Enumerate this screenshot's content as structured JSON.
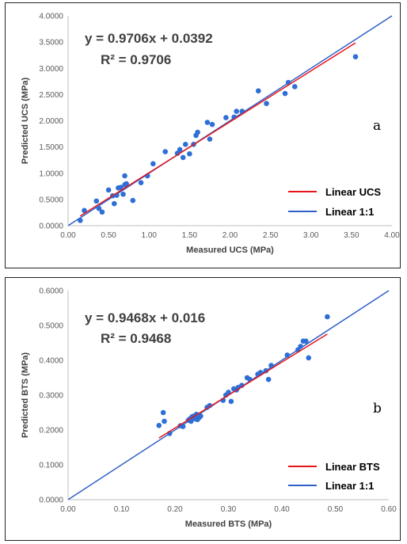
{
  "chart_data": [
    {
      "type": "scatter",
      "panel_label": "a",
      "xlabel": "Measured UCS (MPa)",
      "ylabel": "Predicted UCS (MPa)",
      "xlim": [
        0,
        4
      ],
      "ylim": [
        0,
        4
      ],
      "x_ticks": [
        "0.00",
        "0.50",
        "1.00",
        "1.50",
        "2.00",
        "2.50",
        "3.00",
        "3.50",
        "4.00"
      ],
      "y_ticks": [
        "0.0000",
        "0.5000",
        "1.0000",
        "1.5000",
        "2.0000",
        "2.5000",
        "3.0000",
        "3.5000",
        "4.0000"
      ],
      "equation": "y = 0.9706x + 0.0392",
      "r_squared": "R² = 0.9706",
      "trendline": {
        "slope": 0.9706,
        "intercept": 0.0392,
        "x_range": [
          0.15,
          3.55
        ]
      },
      "identity_line": {
        "x_range": [
          0,
          4
        ]
      },
      "legend": [
        "Linear UCS",
        "Linear 1:1"
      ],
      "legend_position": "bottom-right",
      "colors": {
        "points": "#2e6fd6",
        "trend": "#e8141b",
        "identity": "#2f5fc7"
      },
      "points": [
        [
          0.15,
          0.1
        ],
        [
          0.2,
          0.29
        ],
        [
          0.35,
          0.47
        ],
        [
          0.38,
          0.33
        ],
        [
          0.42,
          0.26
        ],
        [
          0.5,
          0.68
        ],
        [
          0.55,
          0.57
        ],
        [
          0.57,
          0.42
        ],
        [
          0.6,
          0.58
        ],
        [
          0.62,
          0.72
        ],
        [
          0.65,
          0.73
        ],
        [
          0.68,
          0.6
        ],
        [
          0.7,
          0.95
        ],
        [
          0.7,
          0.78
        ],
        [
          0.72,
          0.8
        ],
        [
          0.8,
          0.48
        ],
        [
          0.9,
          0.82
        ],
        [
          0.98,
          0.95
        ],
        [
          1.05,
          1.18
        ],
        [
          1.2,
          1.41
        ],
        [
          1.35,
          1.38
        ],
        [
          1.38,
          1.45
        ],
        [
          1.42,
          1.3
        ],
        [
          1.45,
          1.55
        ],
        [
          1.5,
          1.37
        ],
        [
          1.55,
          1.55
        ],
        [
          1.58,
          1.72
        ],
        [
          1.6,
          1.78
        ],
        [
          1.72,
          1.97
        ],
        [
          1.75,
          1.65
        ],
        [
          1.78,
          1.93
        ],
        [
          1.95,
          2.06
        ],
        [
          2.05,
          2.07
        ],
        [
          2.08,
          2.18
        ],
        [
          2.15,
          2.18
        ],
        [
          2.35,
          2.57
        ],
        [
          2.45,
          2.33
        ],
        [
          2.68,
          2.52
        ],
        [
          2.72,
          2.73
        ],
        [
          2.8,
          2.65
        ],
        [
          3.55,
          3.22
        ]
      ]
    },
    {
      "type": "scatter",
      "panel_label": "b",
      "xlabel": "Measured BTS (MPa)",
      "ylabel": "Predicted BTS (MPa)",
      "xlim": [
        0,
        0.6
      ],
      "ylim": [
        0,
        0.6
      ],
      "x_ticks": [
        "0.00",
        "0.10",
        "0.20",
        "0.30",
        "0.40",
        "0.50",
        "0.60"
      ],
      "y_ticks": [
        "0.0000",
        "0.1000",
        "0.2000",
        "0.3000",
        "0.4000",
        "0.5000",
        "0.6000"
      ],
      "equation": "y = 0.9468x + 0.016",
      "r_squared": "R² = 0.9468",
      "trendline": {
        "slope": 0.9468,
        "intercept": 0.016,
        "x_range": [
          0.17,
          0.485
        ]
      },
      "identity_line": {
        "x_range": [
          0,
          0.6
        ]
      },
      "legend": [
        "Linear BTS",
        "Linear 1:1"
      ],
      "legend_position": "bottom-right",
      "colors": {
        "points": "#2e6fd6",
        "trend": "#e8141b",
        "identity": "#2f5fc7"
      },
      "points": [
        [
          0.17,
          0.213
        ],
        [
          0.178,
          0.25
        ],
        [
          0.18,
          0.225
        ],
        [
          0.19,
          0.19
        ],
        [
          0.21,
          0.212
        ],
        [
          0.215,
          0.21
        ],
        [
          0.225,
          0.228
        ],
        [
          0.228,
          0.232
        ],
        [
          0.23,
          0.225
        ],
        [
          0.232,
          0.238
        ],
        [
          0.235,
          0.24
        ],
        [
          0.238,
          0.232
        ],
        [
          0.24,
          0.245
        ],
        [
          0.242,
          0.23
        ],
        [
          0.245,
          0.235
        ],
        [
          0.248,
          0.24
        ],
        [
          0.26,
          0.265
        ],
        [
          0.265,
          0.27
        ],
        [
          0.29,
          0.285
        ],
        [
          0.295,
          0.3
        ],
        [
          0.3,
          0.308
        ],
        [
          0.305,
          0.282
        ],
        [
          0.31,
          0.318
        ],
        [
          0.315,
          0.315
        ],
        [
          0.318,
          0.322
        ],
        [
          0.325,
          0.328
        ],
        [
          0.335,
          0.35
        ],
        [
          0.34,
          0.345
        ],
        [
          0.355,
          0.36
        ],
        [
          0.36,
          0.365
        ],
        [
          0.37,
          0.37
        ],
        [
          0.375,
          0.345
        ],
        [
          0.38,
          0.385
        ],
        [
          0.41,
          0.415
        ],
        [
          0.43,
          0.43
        ],
        [
          0.435,
          0.44
        ],
        [
          0.44,
          0.455
        ],
        [
          0.445,
          0.455
        ],
        [
          0.45,
          0.407
        ],
        [
          0.485,
          0.525
        ]
      ]
    }
  ]
}
